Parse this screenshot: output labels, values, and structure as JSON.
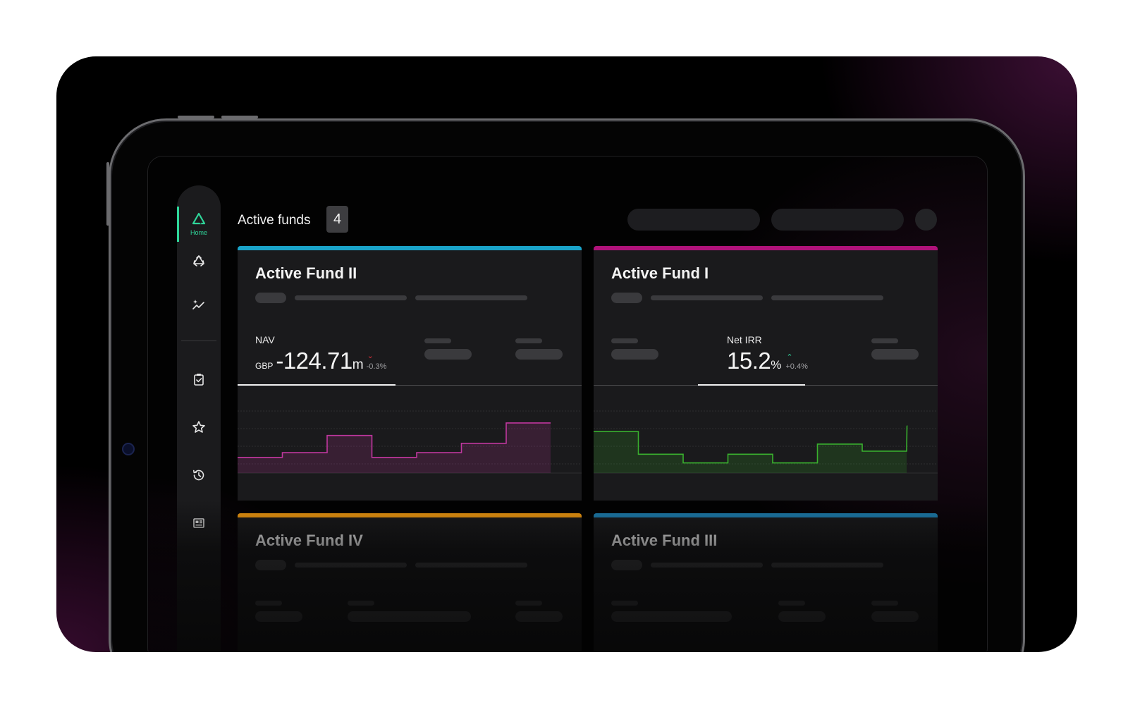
{
  "nav": {
    "home_label": "Home",
    "items": [
      {
        "icon": "logo-triangle-icon",
        "label": "Home",
        "active": true
      },
      {
        "icon": "recycle-icon"
      },
      {
        "icon": "sparkle-trend-icon"
      },
      {
        "icon": "clipboard-check-icon"
      },
      {
        "icon": "star-icon"
      },
      {
        "icon": "history-icon"
      },
      {
        "icon": "news-icon"
      }
    ]
  },
  "header": {
    "title": "Active funds",
    "count": "4"
  },
  "colors": {
    "accent_green": "#2fd69a",
    "fund2": "#1aa3c9",
    "fund1": "#b0127a",
    "fund4": "#f29a10",
    "fund3": "#1e7fb0",
    "negative": "#e0303a",
    "positive": "#2fd69a"
  },
  "cards": [
    {
      "title": "Active Fund II",
      "metric_label": "NAV",
      "currency": "GBP",
      "value": "-124.71",
      "unit": "m",
      "change": "-0.3%",
      "direction": "down"
    },
    {
      "title": "Active Fund I",
      "metric_label": "Net IRR",
      "currency": "",
      "value": "15.2",
      "unit": "%",
      "change": "+0.4%",
      "direction": "up"
    },
    {
      "title": "Active Fund IV"
    },
    {
      "title": "Active Fund III"
    }
  ],
  "chart_data": [
    {
      "type": "area",
      "series": [
        {
          "values": [
            2,
            2.6,
            4.8,
            2,
            2.6,
            3.8,
            6.4
          ]
        }
      ],
      "ylim": [
        0,
        9
      ],
      "color": "#c0379f"
    },
    {
      "type": "line",
      "series": [
        {
          "values": [
            5.3,
            2.4,
            1.3,
            2.4,
            1.3,
            3.7,
            2.8,
            6.0
          ]
        }
      ],
      "ylim": [
        0,
        9
      ],
      "color": "#39b02e"
    }
  ]
}
